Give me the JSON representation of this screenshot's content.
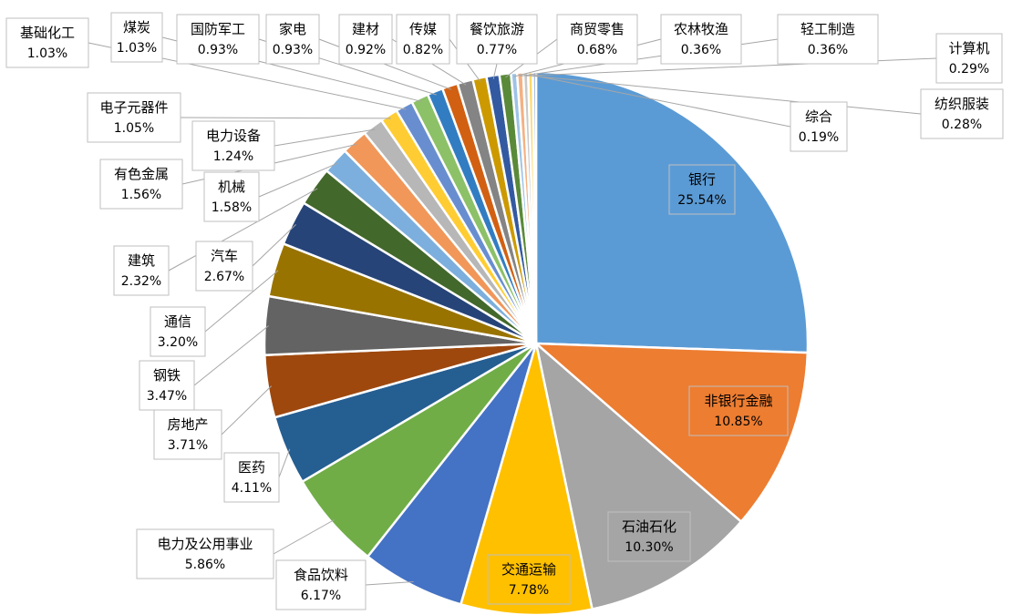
{
  "chart_data": {
    "type": "pie",
    "title": "",
    "unit": "%",
    "slices": [
      {
        "name": "银行",
        "value": 25.54,
        "label": "25.54%",
        "color": "#5b9bd5"
      },
      {
        "name": "非银行金融",
        "value": 10.85,
        "label": "10.85%",
        "color": "#ed7d31"
      },
      {
        "name": "石油石化",
        "value": 10.3,
        "label": "10.30%",
        "color": "#a5a5a5"
      },
      {
        "name": "交通运输",
        "value": 7.78,
        "label": "7.78%",
        "color": "#ffc000"
      },
      {
        "name": "食品饮料",
        "value": 6.17,
        "label": "6.17%",
        "color": "#4472c4"
      },
      {
        "name": "电力及公用事业",
        "value": 5.86,
        "label": "5.86%",
        "color": "#70ad47"
      },
      {
        "name": "医药",
        "value": 4.11,
        "label": "4.11%",
        "color": "#255e91"
      },
      {
        "name": "房地产",
        "value": 3.71,
        "label": "3.71%",
        "color": "#9e480e"
      },
      {
        "name": "钢铁",
        "value": 3.47,
        "label": "3.47%",
        "color": "#636363"
      },
      {
        "name": "通信",
        "value": 3.2,
        "label": "3.20%",
        "color": "#997300"
      },
      {
        "name": "汽车",
        "value": 2.67,
        "label": "2.67%",
        "color": "#264478"
      },
      {
        "name": "建筑",
        "value": 2.32,
        "label": "2.32%",
        "color": "#43682b"
      },
      {
        "name": "机械",
        "value": 1.58,
        "label": "1.58%",
        "color": "#7cafdd"
      },
      {
        "name": "有色金属",
        "value": 1.56,
        "label": "1.56%",
        "color": "#f1975a"
      },
      {
        "name": "电力设备",
        "value": 1.24,
        "label": "1.24%",
        "color": "#b7b7b7"
      },
      {
        "name": "电子元器件",
        "value": 1.05,
        "label": "1.05%",
        "color": "#ffcd33"
      },
      {
        "name": "基础化工",
        "value": 1.03,
        "label": "1.03%",
        "color": "#698ed0"
      },
      {
        "name": "煤炭",
        "value": 1.03,
        "label": "1.03%",
        "color": "#8cc168"
      },
      {
        "name": "国防军工",
        "value": 0.93,
        "label": "0.93%",
        "color": "#327dc2"
      },
      {
        "name": "家电",
        "value": 0.93,
        "label": "0.93%",
        "color": "#d26012"
      },
      {
        "name": "建材",
        "value": 0.92,
        "label": "0.92%",
        "color": "#848484"
      },
      {
        "name": "传媒",
        "value": 0.82,
        "label": "0.82%",
        "color": "#cc9a00"
      },
      {
        "name": "餐饮旅游",
        "value": 0.77,
        "label": "0.77%",
        "color": "#335aa1"
      },
      {
        "name": "商贸零售",
        "value": 0.68,
        "label": "0.68%",
        "color": "#5a8a39"
      },
      {
        "name": "农林牧渔",
        "value": 0.36,
        "label": "0.36%",
        "color": "#9dc3e6"
      },
      {
        "name": "轻工制造",
        "value": 0.36,
        "label": "0.36%",
        "color": "#f4b183"
      },
      {
        "name": "计算机",
        "value": 0.29,
        "label": "0.29%",
        "color": "#c9c9c9"
      },
      {
        "name": "纺织服装",
        "value": 0.28,
        "label": "0.28%",
        "color": "#ffd966"
      },
      {
        "name": "综合",
        "value": 0.19,
        "label": "0.19%",
        "color": "#8faadc"
      }
    ]
  }
}
